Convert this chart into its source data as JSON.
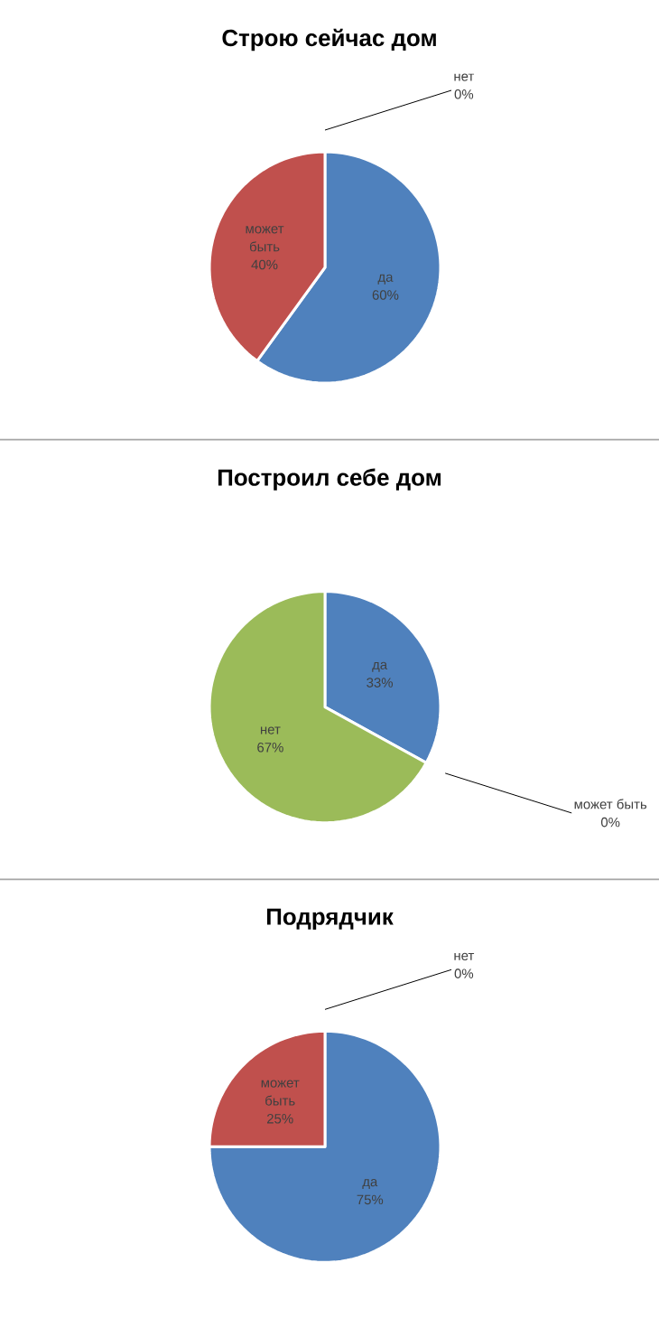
{
  "chart_data": [
    {
      "type": "pie",
      "title": "Строю сейчас дом",
      "categories": [
        "да",
        "может быть",
        "нет"
      ],
      "values": [
        60,
        40,
        0
      ],
      "value_labels": [
        "60%",
        "40%",
        "0%"
      ],
      "colors": [
        "#4f81bd",
        "#c0504d",
        "#9bbb59"
      ]
    },
    {
      "type": "pie",
      "title": "Построил себе дом",
      "categories": [
        "да",
        "может быть",
        "нет"
      ],
      "values": [
        33,
        0,
        67
      ],
      "value_labels": [
        "33%",
        "0%",
        "67%"
      ],
      "colors": [
        "#4f81bd",
        "#c0504d",
        "#9bbb59"
      ]
    },
    {
      "type": "pie",
      "title": "Подрядчик",
      "categories": [
        "да",
        "может быть",
        "нет"
      ],
      "values": [
        75,
        25,
        0
      ],
      "value_labels": [
        "75%",
        "25%",
        "0%"
      ],
      "colors": [
        "#4f81bd",
        "#c0504d",
        "#9bbb59"
      ]
    }
  ]
}
